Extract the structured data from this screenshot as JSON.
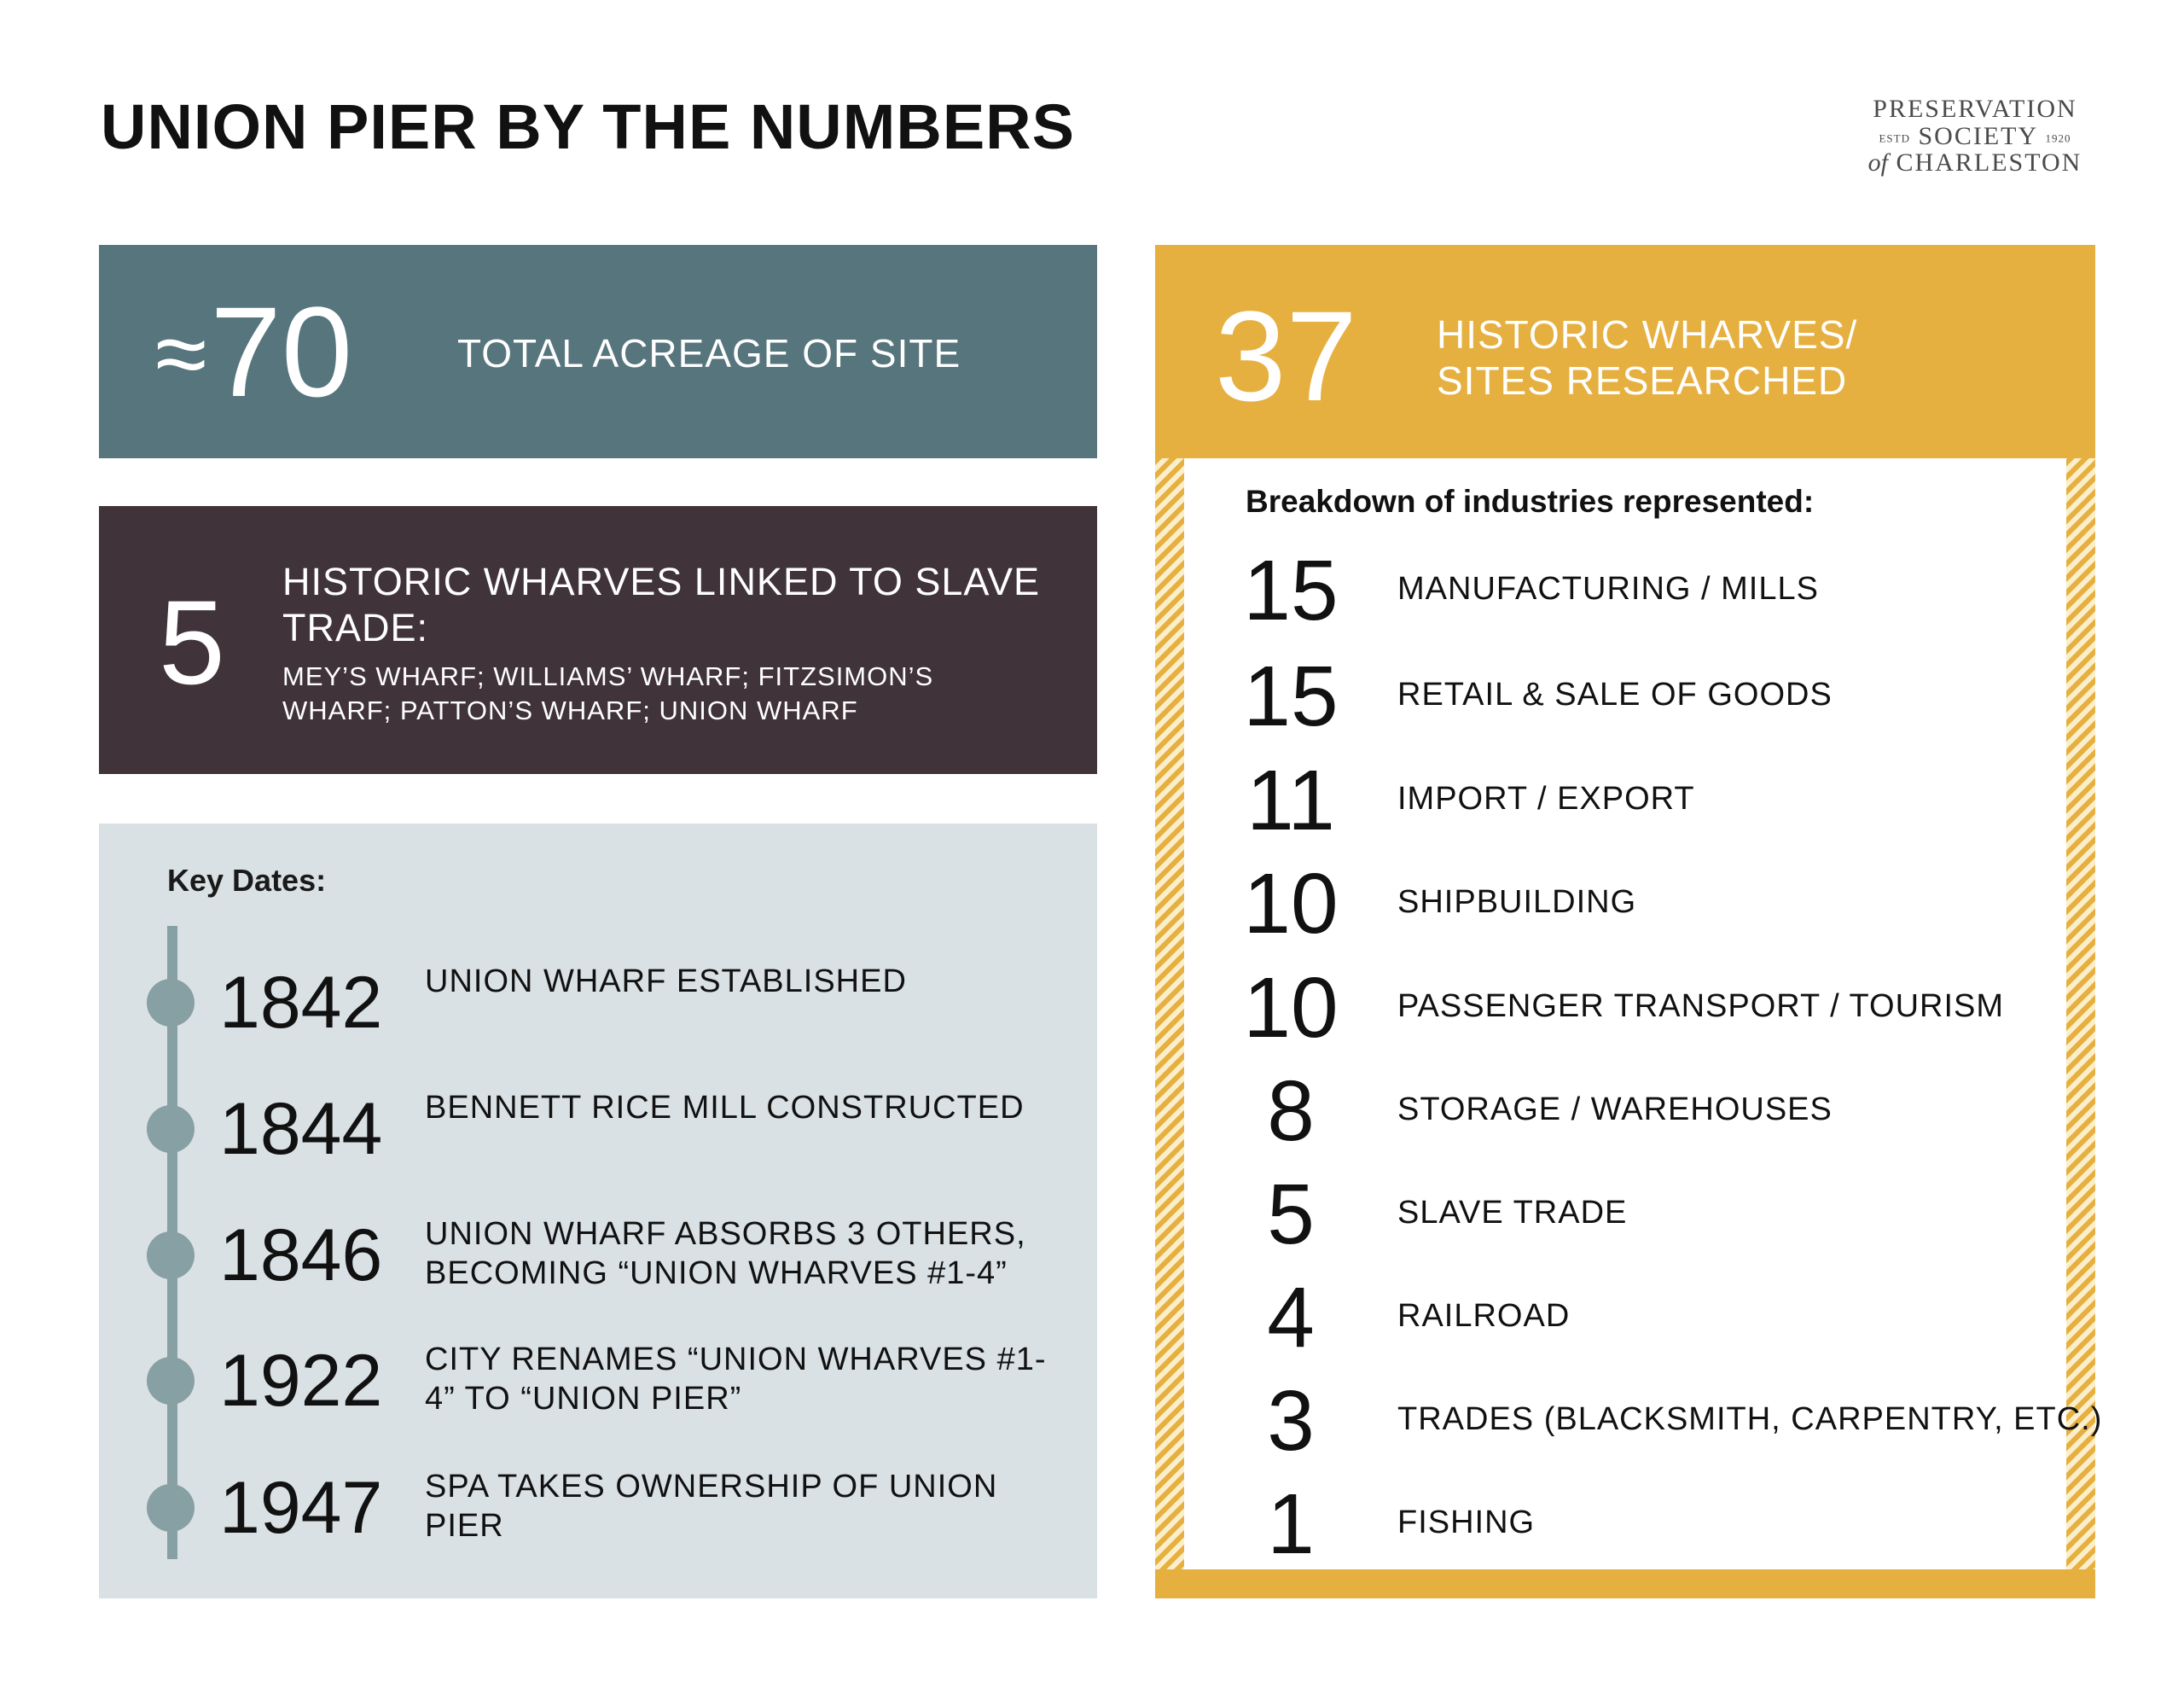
{
  "header": {
    "title": "UNION PIER BY THE NUMBERS",
    "logo": {
      "line1": "PRESERVATION",
      "estd": "ESTD",
      "line2": "SOCIETY",
      "year": "1920",
      "of": "of",
      "line3": "CHARLESTON"
    }
  },
  "acreage": {
    "approx": "≈",
    "value": "70",
    "label": "TOTAL ACREAGE OF SITE"
  },
  "slave_wharves": {
    "value": "5",
    "heading": "HISTORIC WHARVES LINKED TO SLAVE TRADE:",
    "list": "MEY’S WHARF; WILLIAMS’ WHARF; FITZSIMON’S WHARF; PATTON’S WHARF; UNION WHARF"
  },
  "key_dates": {
    "heading": "Key Dates:",
    "items": [
      {
        "year": "1842",
        "desc": "UNION WHARF ESTABLISHED"
      },
      {
        "year": "1844",
        "desc": "BENNETT RICE MILL CONSTRUCTED"
      },
      {
        "year": "1846",
        "desc": "UNION WHARF ABSORBS 3 OTHERS, BECOMING “UNION WHARVES #1-4”"
      },
      {
        "year": "1922",
        "desc": "CITY RENAMES “UNION WHARVES #1-4” TO “UNION PIER”"
      },
      {
        "year": "1947",
        "desc": "SPA TAKES OWNERSHIP OF UNION PIER"
      }
    ]
  },
  "sites": {
    "value": "37",
    "label": "HISTORIC WHARVES/ SITES RESEARCHED",
    "breakdown_heading": "Breakdown of industries represented:",
    "industries": [
      {
        "count": "15",
        "label": "MANUFACTURING / MILLS"
      },
      {
        "count": "15",
        "label": "RETAIL & SALE OF GOODS"
      },
      {
        "count": "11",
        "label": "IMPORT / EXPORT"
      },
      {
        "count": "10",
        "label": "SHIPBUILDING"
      },
      {
        "count": "10",
        "label": "PASSENGER TRANSPORT / TOURISM"
      },
      {
        "count": "8",
        "label": "STORAGE / WAREHOUSES"
      },
      {
        "count": "5",
        "label": "SLAVE TRADE"
      },
      {
        "count": "4",
        "label": "RAILROAD"
      },
      {
        "count": "3",
        "label": "TRADES (BLACKSMITH, CARPENTRY, ETC.)"
      },
      {
        "count": "1",
        "label": "FISHING"
      }
    ]
  },
  "colors": {
    "teal": "#56757c",
    "plum": "#403339",
    "light_gray": "#d9e1e4",
    "gold": "#e6b041",
    "timeline": "#87a0a4"
  }
}
